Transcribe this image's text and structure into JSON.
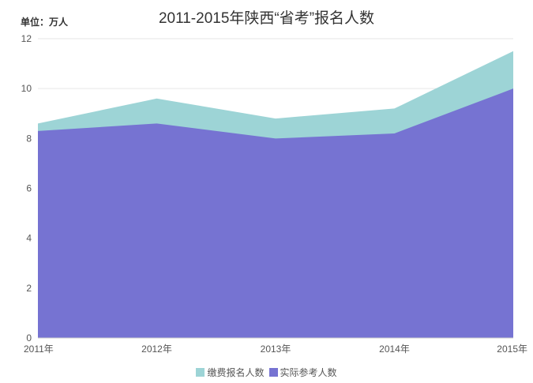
{
  "chart_data": {
    "type": "area",
    "title": "2011-2015年陕西“省考”报名人数",
    "unit_label": "单位：万人",
    "categories": [
      "2011年",
      "2012年",
      "2013年",
      "2014年",
      "2015年"
    ],
    "ylim": [
      0,
      12
    ],
    "yticks": [
      0,
      2,
      4,
      6,
      8,
      10,
      12
    ],
    "grid": true,
    "legend_position": "bottom",
    "series": [
      {
        "name": "缴费报名人数",
        "values": [
          8.6,
          9.6,
          8.8,
          9.2,
          11.5
        ],
        "color": "#9dd4d6"
      },
      {
        "name": "实际参考人数",
        "values": [
          8.3,
          8.6,
          8.0,
          8.2,
          10.0
        ],
        "color": "#7673d2"
      }
    ]
  }
}
